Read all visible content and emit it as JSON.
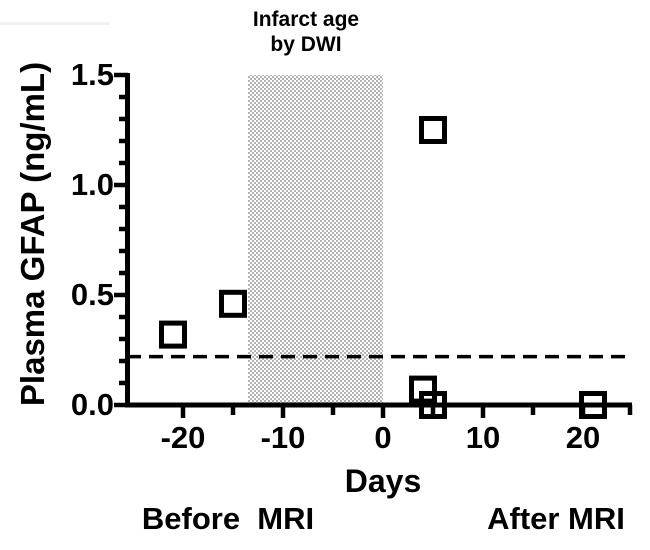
{
  "chart_data": {
    "type": "scatter",
    "title": "Infarct age by DWI",
    "title_lines": [
      "Infarct age",
      "by DWI"
    ],
    "xlabel": "Days",
    "ylabel": "Plasma GFAP (ng/mL)",
    "xlim": [
      -25.5,
      25
    ],
    "ylim": [
      0,
      1.5
    ],
    "grid": false,
    "x_major_ticks": [
      -20,
      -10,
      0,
      10,
      20
    ],
    "x_tick_labels": [
      "-20",
      "-10",
      "0",
      "10",
      "20"
    ],
    "x_minor_ticks": [
      -15,
      -5,
      5,
      15,
      25
    ],
    "y_major_ticks": [
      0.0,
      0.5,
      1.0,
      1.5
    ],
    "y_tick_labels": [
      "0.0",
      "0.5",
      "1.0",
      "1.5"
    ],
    "y_minor_step": 0.1,
    "marker": "open-square",
    "points": [
      {
        "x": -21,
        "y": 0.32
      },
      {
        "x": -15,
        "y": 0.46
      },
      {
        "x": 4,
        "y": 0.07
      },
      {
        "x": 5,
        "y": 0.0
      },
      {
        "x": 5,
        "y": 1.25
      },
      {
        "x": 21,
        "y": 0.0
      }
    ],
    "threshold_line": {
      "y": 0.22,
      "style": "dashed"
    },
    "shaded_band": {
      "x_start": -13.5,
      "x_end": 0,
      "pattern": "gray-checker",
      "label": "Infarct age by DWI"
    },
    "annotations": [
      {
        "text": "Before  MRI",
        "position": "below-axis-left"
      },
      {
        "text": "After MRI",
        "position": "below-axis-right"
      }
    ],
    "colors": {
      "marker": "#000000",
      "band_gray": "#b2b2b2",
      "axis": "#000000",
      "text": "#000000",
      "background": "#ffffff",
      "artifact_gray": "#f1f1f1"
    }
  }
}
